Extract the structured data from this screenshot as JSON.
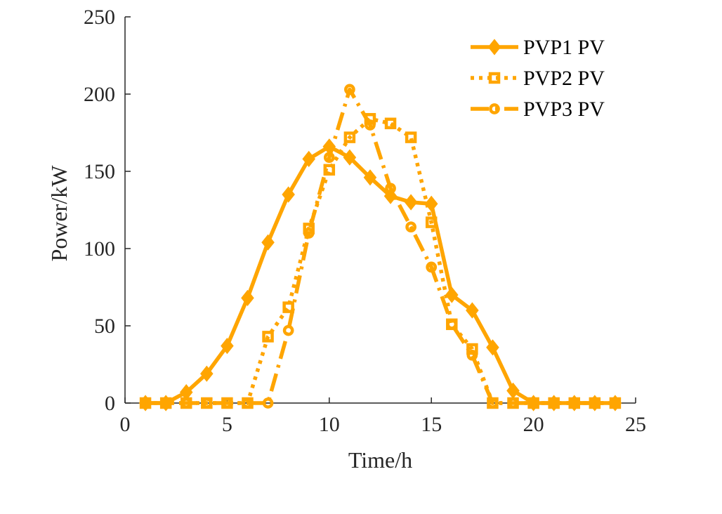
{
  "chart_data": {
    "type": "line",
    "xlabel": "Time/h",
    "ylabel": "Power/kW",
    "xlim": [
      0,
      25
    ],
    "ylim": [
      0,
      250
    ],
    "xticks": [
      0,
      5,
      10,
      15,
      20,
      25
    ],
    "yticks": [
      0,
      50,
      100,
      150,
      200,
      250
    ],
    "grid": false,
    "legend_position": "top-right",
    "line_color": "#FFA500",
    "x": [
      1,
      2,
      3,
      4,
      5,
      6,
      7,
      8,
      9,
      10,
      11,
      12,
      13,
      14,
      15,
      16,
      17,
      18,
      19,
      20,
      21,
      22,
      23,
      24
    ],
    "series": [
      {
        "name": "PVP1 PV",
        "line_style": "solid",
        "marker": "diamond",
        "values": [
          0,
          0,
          7,
          19,
          37,
          68,
          104,
          135,
          158,
          166,
          159,
          146,
          134,
          130,
          129,
          70,
          60,
          36,
          8,
          0,
          0,
          0,
          0,
          0
        ]
      },
      {
        "name": "PVP2 PV",
        "line_style": "dotted",
        "marker": "square",
        "values": [
          0,
          0,
          0,
          0,
          0,
          0,
          43,
          62,
          113,
          151,
          172,
          184,
          181,
          172,
          117,
          51,
          35,
          0,
          0,
          0,
          0,
          0,
          0,
          0
        ]
      },
      {
        "name": "PVP3 PV",
        "line_style": "dashdot",
        "marker": "circle",
        "values": [
          0,
          0,
          0,
          0,
          0,
          0,
          0,
          47,
          110,
          159,
          203,
          180,
          139,
          114,
          88,
          51,
          31,
          0,
          0,
          0,
          0,
          0,
          0,
          0
        ]
      }
    ]
  }
}
